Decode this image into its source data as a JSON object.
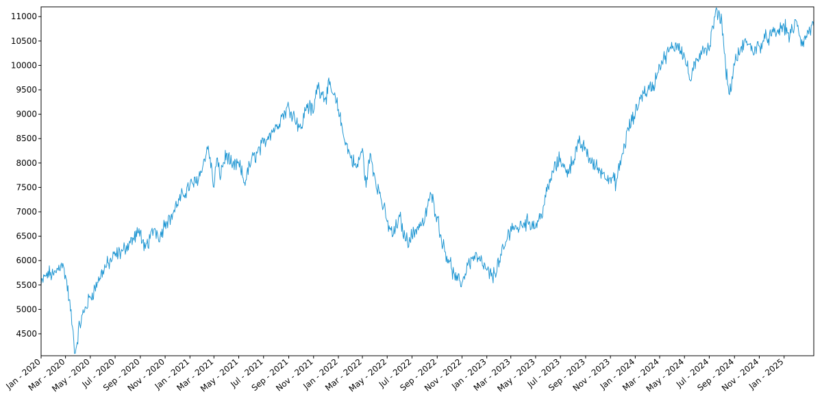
{
  "chart_data": {
    "type": "line",
    "title": "",
    "xlabel": "",
    "ylabel": "",
    "xlim": [
      "2020-01-01",
      "2025-03-15"
    ],
    "ylim": [
      4050,
      11200
    ],
    "grid": false,
    "line_color": "#1f96d2",
    "y_ticks": [
      4500,
      5000,
      5500,
      6000,
      6500,
      7000,
      7500,
      8000,
      8500,
      9000,
      9500,
      10000,
      10500,
      11000
    ],
    "x_ticks": [
      {
        "date": "2020-01-01",
        "label": "Jan - 2020"
      },
      {
        "date": "2020-03-01",
        "label": "Mar - 2020"
      },
      {
        "date": "2020-05-01",
        "label": "May - 2020"
      },
      {
        "date": "2020-07-01",
        "label": "Jul - 2020"
      },
      {
        "date": "2020-09-01",
        "label": "Sep - 2020"
      },
      {
        "date": "2020-11-01",
        "label": "Nov - 2020"
      },
      {
        "date": "2021-01-01",
        "label": "Jan - 2021"
      },
      {
        "date": "2021-03-01",
        "label": "Mar - 2021"
      },
      {
        "date": "2021-05-01",
        "label": "May - 2021"
      },
      {
        "date": "2021-07-01",
        "label": "Jul - 2021"
      },
      {
        "date": "2021-09-01",
        "label": "Sep - 2021"
      },
      {
        "date": "2021-11-01",
        "label": "Nov - 2021"
      },
      {
        "date": "2022-01-01",
        "label": "Jan - 2022"
      },
      {
        "date": "2022-03-01",
        "label": "Mar - 2022"
      },
      {
        "date": "2022-05-01",
        "label": "May - 2022"
      },
      {
        "date": "2022-07-01",
        "label": "Jul - 2022"
      },
      {
        "date": "2022-09-01",
        "label": "Sep - 2022"
      },
      {
        "date": "2022-11-01",
        "label": "Nov - 2022"
      },
      {
        "date": "2023-01-01",
        "label": "Jan - 2023"
      },
      {
        "date": "2023-03-01",
        "label": "Mar - 2023"
      },
      {
        "date": "2023-05-01",
        "label": "May - 2023"
      },
      {
        "date": "2023-07-01",
        "label": "Jul - 2023"
      },
      {
        "date": "2023-09-01",
        "label": "Sep - 2023"
      },
      {
        "date": "2023-11-01",
        "label": "Nov - 2023"
      },
      {
        "date": "2024-01-01",
        "label": "Jan - 2024"
      },
      {
        "date": "2024-03-01",
        "label": "Mar - 2024"
      },
      {
        "date": "2024-05-01",
        "label": "May - 2024"
      },
      {
        "date": "2024-07-01",
        "label": "Jul - 2024"
      },
      {
        "date": "2024-09-01",
        "label": "Sep - 2024"
      },
      {
        "date": "2024-11-01",
        "label": "Nov - 2024"
      },
      {
        "date": "2025-01-01",
        "label": "Jan - 2025"
      }
    ],
    "series": [
      {
        "x": [
          "2020-01-01",
          "2020-01-15",
          "2020-02-01",
          "2020-02-20",
          "2020-03-01",
          "2020-03-10",
          "2020-03-18",
          "2020-03-25",
          "2020-04-05",
          "2020-04-20",
          "2020-05-01",
          "2020-05-20",
          "2020-06-01",
          "2020-06-15",
          "2020-07-01",
          "2020-07-20",
          "2020-08-01",
          "2020-08-15",
          "2020-09-01",
          "2020-09-10",
          "2020-09-25",
          "2020-10-05",
          "2020-10-20",
          "2020-11-01",
          "2020-11-15",
          "2020-12-01",
          "2020-12-15",
          "2021-01-01",
          "2021-01-15",
          "2021-02-01",
          "2021-02-15",
          "2021-03-01",
          "2021-03-08",
          "2021-03-15",
          "2021-04-01",
          "2021-04-15",
          "2021-05-01",
          "2021-05-15",
          "2021-06-01",
          "2021-06-15",
          "2021-07-01",
          "2021-07-15",
          "2021-08-01",
          "2021-08-15",
          "2021-09-01",
          "2021-09-15",
          "2021-10-01",
          "2021-10-15",
          "2021-11-01",
          "2021-11-10",
          "2021-11-20",
          "2021-12-01",
          "2021-12-10",
          "2021-12-20",
          "2022-01-01",
          "2022-01-15",
          "2022-02-01",
          "2022-02-15",
          "2022-03-01",
          "2022-03-10",
          "2022-03-20",
          "2022-04-01",
          "2022-04-15",
          "2022-05-01",
          "2022-05-15",
          "2022-06-01",
          "2022-06-15",
          "2022-07-01",
          "2022-07-15",
          "2022-08-01",
          "2022-08-15",
          "2022-09-01",
          "2022-09-15",
          "2022-10-01",
          "2022-10-15",
          "2022-11-01",
          "2022-11-15",
          "2022-12-01",
          "2022-12-15",
          "2023-01-01",
          "2023-01-15",
          "2023-02-01",
          "2023-02-15",
          "2023-03-01",
          "2023-03-15",
          "2023-04-01",
          "2023-04-15",
          "2023-05-01",
          "2023-05-15",
          "2023-06-01",
          "2023-06-15",
          "2023-07-01",
          "2023-07-15",
          "2023-08-01",
          "2023-08-15",
          "2023-09-01",
          "2023-09-15",
          "2023-10-01",
          "2023-10-15",
          "2023-11-01",
          "2023-11-15",
          "2023-12-01",
          "2023-12-15",
          "2024-01-01",
          "2024-01-15",
          "2024-02-01",
          "2024-02-15",
          "2024-03-01",
          "2024-03-15",
          "2024-04-01",
          "2024-04-15",
          "2024-05-01",
          "2024-05-15",
          "2024-06-01",
          "2024-06-15",
          "2024-07-01",
          "2024-07-10",
          "2024-07-20",
          "2024-08-01",
          "2024-08-10",
          "2024-08-20",
          "2024-09-01",
          "2024-09-15",
          "2024-10-01",
          "2024-10-15",
          "2024-11-01",
          "2024-11-15",
          "2024-12-01",
          "2024-12-15",
          "2025-01-01",
          "2025-01-15",
          "2025-02-01",
          "2025-02-15",
          "2025-03-01",
          "2025-03-15"
        ],
        "y": [
          5500,
          5750,
          5700,
          5950,
          5700,
          5200,
          4650,
          4100,
          4700,
          5050,
          5250,
          5550,
          5800,
          5950,
          6100,
          6200,
          6350,
          6450,
          6600,
          6200,
          6450,
          6650,
          6500,
          6800,
          6900,
          7150,
          7350,
          7550,
          7600,
          7900,
          8350,
          7500,
          8100,
          7750,
          8200,
          7900,
          8000,
          7600,
          8050,
          8200,
          8400,
          8600,
          8750,
          8950,
          9150,
          8950,
          8700,
          9200,
          9050,
          9600,
          9450,
          9350,
          9600,
          9400,
          9100,
          8500,
          8100,
          7900,
          8300,
          7500,
          8200,
          7700,
          7300,
          6800,
          6500,
          6900,
          6400,
          6500,
          6700,
          6800,
          7400,
          6900,
          6300,
          6000,
          5600,
          5550,
          5900,
          6100,
          6000,
          5800,
          5650,
          6000,
          6300,
          6700,
          6650,
          6750,
          6800,
          6700,
          6950,
          7500,
          7850,
          8100,
          7800,
          8050,
          8400,
          8300,
          8000,
          7900,
          7800,
          7700,
          7600,
          8200,
          8700,
          9000,
          9400,
          9500,
          9600,
          10000,
          10200,
          10350,
          10450,
          10200,
          9700,
          10100,
          10400,
          10300,
          10800,
          11150,
          10900,
          10000,
          9400,
          10000,
          10300,
          10500,
          10300,
          10400,
          10550,
          10600,
          10700,
          10800,
          10600,
          10900,
          10400,
          10700,
          10800
        ]
      }
    ]
  }
}
